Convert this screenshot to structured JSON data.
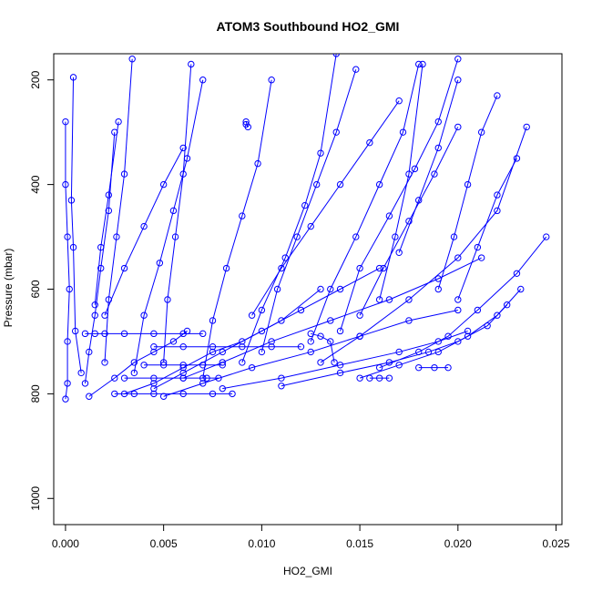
{
  "chart_data": {
    "type": "scatter",
    "title": "ATOM3 Southbound HO2_GMI",
    "xlabel": "HO2_GMI",
    "ylabel": "Pressure (mbar)",
    "xlim": [
      -0.0006,
      0.0253
    ],
    "ylim": [
      1050,
      150
    ],
    "y_reversed": true,
    "x_ticks": [
      0.0,
      0.005,
      0.01,
      0.015,
      0.02,
      0.025
    ],
    "x_tick_labels": [
      "0.000",
      "0.005",
      "0.010",
      "0.015",
      "0.020",
      "0.025"
    ],
    "y_ticks": [
      200,
      400,
      600,
      800,
      1000
    ],
    "y_tick_labels": [
      "200",
      "400",
      "600",
      "800",
      "1000"
    ],
    "grid": false,
    "legend": "none",
    "series_color": "#0000ff",
    "marker": "open-circle-with-lines",
    "series": [
      {
        "x": [
          0.0,
          0.0001,
          0.0001,
          0.0002,
          0.0001,
          0.0,
          0.0
        ],
        "y": [
          810,
          780,
          700,
          600,
          500,
          400,
          280
        ]
      },
      {
        "x": [
          0.0008,
          0.0005,
          0.0004,
          0.0003,
          0.0004
        ],
        "y": [
          760,
          680,
          520,
          430,
          195
        ]
      },
      {
        "x": [
          0.001,
          0.0012,
          0.0015,
          0.0018,
          0.0022,
          0.0025
        ],
        "y": [
          780,
          720,
          650,
          560,
          450,
          300
        ]
      },
      {
        "x": [
          0.0012,
          0.0025,
          0.0035,
          0.0045,
          0.0055,
          0.0062
        ],
        "y": [
          805,
          770,
          740,
          720,
          700,
          680
        ]
      },
      {
        "x": [
          0.003,
          0.0045,
          0.006,
          0.0075,
          0.009,
          0.011,
          0.013
        ],
        "y": [
          800,
          780,
          750,
          720,
          700,
          660,
          600
        ]
      },
      {
        "x": [
          0.0045,
          0.006,
          0.008,
          0.01,
          0.012,
          0.014,
          0.016
        ],
        "y": [
          790,
          760,
          720,
          680,
          640,
          600,
          560
        ]
      },
      {
        "x": [
          0.005,
          0.007,
          0.0095,
          0.0125,
          0.015,
          0.0175,
          0.02
        ],
        "y": [
          805,
          780,
          750,
          720,
          690,
          660,
          640
        ]
      },
      {
        "x": [
          0.008,
          0.011,
          0.014,
          0.017,
          0.019,
          0.0205
        ],
        "y": [
          790,
          770,
          745,
          720,
          700,
          680
        ]
      },
      {
        "x": [
          0.011,
          0.014,
          0.0165,
          0.0185,
          0.02,
          0.0215,
          0.0225
        ],
        "y": [
          785,
          760,
          740,
          720,
          700,
          670,
          630
        ]
      },
      {
        "x": [
          0.015,
          0.017,
          0.019,
          0.0205,
          0.022,
          0.0232
        ],
        "y": [
          770,
          745,
          720,
          690,
          650,
          600
        ]
      },
      {
        "x": [
          0.016,
          0.018,
          0.0195,
          0.021,
          0.023,
          0.0245
        ],
        "y": [
          750,
          720,
          690,
          640,
          570,
          500
        ]
      },
      {
        "x": [
          0.006,
          0.008,
          0.0105,
          0.0135,
          0.0165,
          0.019,
          0.0212
        ],
        "y": [
          770,
          740,
          700,
          660,
          620,
          580,
          540
        ]
      },
      {
        "x": [
          0.0035,
          0.004,
          0.0048,
          0.0055,
          0.0062,
          0.007
        ],
        "y": [
          760,
          650,
          550,
          450,
          350,
          200
        ]
      },
      {
        "x": [
          0.002,
          0.0022,
          0.0026,
          0.003,
          0.0034
        ],
        "y": [
          740,
          620,
          500,
          380,
          160
        ]
      },
      {
        "x": [
          0.007,
          0.0075,
          0.0082,
          0.009,
          0.0098,
          0.0105
        ],
        "y": [
          770,
          660,
          560,
          460,
          360,
          200
        ]
      },
      {
        "x": [
          0.01,
          0.0108,
          0.0118,
          0.0128,
          0.0138,
          0.0148
        ],
        "y": [
          720,
          600,
          500,
          400,
          300,
          180
        ]
      },
      {
        "x": [
          0.0125,
          0.0135,
          0.0148,
          0.016,
          0.0172,
          0.018
        ],
        "y": [
          700,
          600,
          500,
          400,
          300,
          170
        ]
      },
      {
        "x": [
          0.014,
          0.015,
          0.0165,
          0.0178,
          0.019,
          0.02
        ],
        "y": [
          680,
          560,
          460,
          370,
          280,
          160
        ]
      },
      {
        "x": [
          0.013,
          0.015,
          0.0175,
          0.02,
          0.022,
          0.0235
        ],
        "y": [
          740,
          690,
          620,
          540,
          450,
          290
        ]
      },
      {
        "x": [
          0.009,
          0.01,
          0.0112,
          0.0122,
          0.013,
          0.0138
        ],
        "y": [
          740,
          640,
          540,
          440,
          340,
          150
        ]
      },
      {
        "x": [
          0.005,
          0.0052,
          0.0056,
          0.006,
          0.0064
        ],
        "y": [
          740,
          620,
          500,
          380,
          170
        ]
      },
      {
        "x": [
          0.001,
          0.0015,
          0.002,
          0.003,
          0.0045,
          0.006,
          0.007
        ],
        "y": [
          685,
          685,
          685,
          685,
          685,
          685,
          685
        ]
      },
      {
        "x": [
          0.0045,
          0.006,
          0.0075,
          0.009,
          0.0105,
          0.012
        ],
        "y": [
          710,
          710,
          710,
          710,
          710,
          710
        ]
      },
      {
        "x": [
          0.004,
          0.005,
          0.006,
          0.007,
          0.008
        ],
        "y": [
          745,
          745,
          745,
          745,
          745
        ]
      },
      {
        "x": [
          0.0025,
          0.0035,
          0.0045,
          0.006,
          0.0075,
          0.0085
        ],
        "y": [
          800,
          800,
          800,
          800,
          800,
          800
        ]
      },
      {
        "x": [
          0.003,
          0.0045,
          0.006,
          0.0072,
          0.0078
        ],
        "y": [
          770,
          770,
          770,
          770,
          770
        ]
      },
      {
        "x": [
          0.0125,
          0.013,
          0.0135,
          0.0137
        ],
        "y": [
          685,
          690,
          700,
          740
        ]
      },
      {
        "x": [
          0.018,
          0.0188,
          0.0195
        ],
        "y": [
          750,
          750,
          750
        ]
      },
      {
        "x": [
          0.0155,
          0.016,
          0.0165
        ],
        "y": [
          770,
          770,
          770
        ]
      },
      {
        "x": [
          0.02,
          0.021,
          0.022,
          0.023
        ],
        "y": [
          620,
          520,
          420,
          350
        ]
      },
      {
        "x": [
          0.019,
          0.0198,
          0.0205,
          0.0212,
          0.022
        ],
        "y": [
          600,
          500,
          400,
          300,
          230
        ]
      },
      {
        "x": [
          0.017,
          0.018,
          0.019,
          0.02
        ],
        "y": [
          530,
          430,
          330,
          200
        ]
      },
      {
        "x": [
          0.016,
          0.0168,
          0.0175,
          0.0182
        ],
        "y": [
          620,
          500,
          380,
          170
        ]
      },
      {
        "x": [
          0.015,
          0.0162,
          0.0175,
          0.0188,
          0.02
        ],
        "y": [
          650,
          560,
          470,
          380,
          290
        ]
      },
      {
        "x": [
          0.0095,
          0.011,
          0.0125,
          0.014,
          0.0155,
          0.017
        ],
        "y": [
          650,
          560,
          480,
          400,
          320,
          240
        ]
      },
      {
        "x": [
          0.002,
          0.003,
          0.004,
          0.005,
          0.006
        ],
        "y": [
          650,
          560,
          480,
          400,
          330
        ]
      },
      {
        "x": [
          0.0015,
          0.0018,
          0.0022,
          0.0027
        ],
        "y": [
          630,
          520,
          420,
          280
        ]
      },
      {
        "x": [
          0.0092,
          0.0093,
          0.0092
        ],
        "y": [
          280,
          290,
          285
        ]
      }
    ]
  }
}
